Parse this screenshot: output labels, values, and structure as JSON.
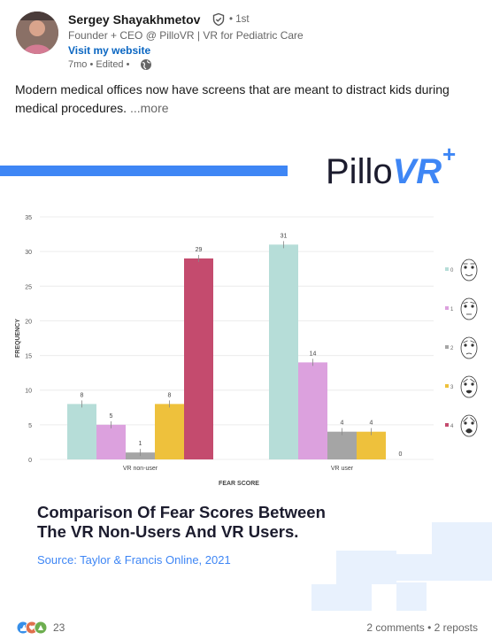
{
  "post": {
    "author": {
      "name": "Sergey Shayakhmetov",
      "degree": "• 1st",
      "headline": "Founder + CEO @ PilloVR | VR for Pediatric Care",
      "website_label": "Visit my website",
      "meta": "7mo • Edited •"
    },
    "text": "Modern medical offices now have screens that are meant to distract kids during medical procedures.",
    "more_label": "...more"
  },
  "image": {
    "brand_logo": "PilloVR",
    "brand_plus": "+",
    "caption_title_line1": "Comparison Of Fear Scores Between",
    "caption_title_line2": "The VR Non-Users And VR Users.",
    "caption_source": "Source: Taylor & Francis Online, 2021",
    "colors": {
      "brand_blue": "#3e86f5",
      "decor_light_blue": "#e8f1fd"
    }
  },
  "chart_data": {
    "type": "bar",
    "categories": [
      "VR non-user",
      "VR user"
    ],
    "series": [
      {
        "name": "0",
        "values": [
          8,
          31
        ],
        "color": "#b6ddd8"
      },
      {
        "name": "1",
        "values": [
          5,
          14
        ],
        "color": "#dca1de"
      },
      {
        "name": "2",
        "values": [
          1,
          4
        ],
        "color": "#a5a5a5"
      },
      {
        "name": "3",
        "values": [
          8,
          4
        ],
        "color": "#eec13c"
      },
      {
        "name": "4",
        "values": [
          29,
          0
        ],
        "color": "#c44b6e"
      }
    ],
    "xlabel": "FEAR SCORE",
    "ylabel": "FREQUENCY",
    "ylim": [
      0,
      35
    ],
    "yticks": [
      0,
      5,
      10,
      15,
      20,
      25,
      30,
      35
    ],
    "legend_position": "right",
    "legend_icons": [
      "face-score-0-icon",
      "face-score-1-icon",
      "face-score-2-icon",
      "face-score-3-icon",
      "face-score-4-icon"
    ]
  },
  "footer": {
    "reaction_count": "23",
    "social_counts": "2 comments • 2 reposts"
  }
}
